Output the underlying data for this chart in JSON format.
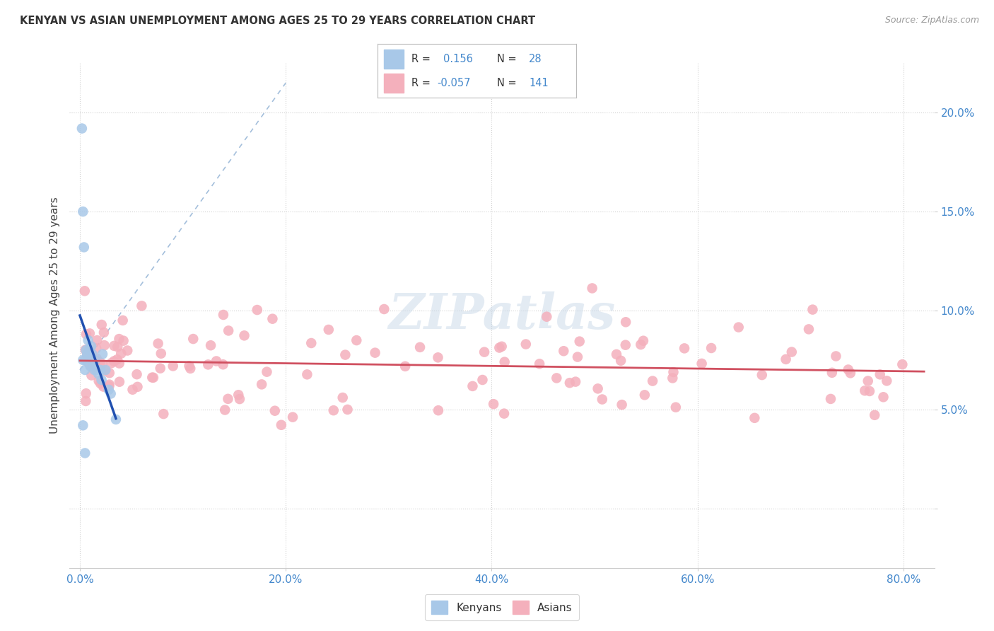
{
  "title": "KENYAN VS ASIAN UNEMPLOYMENT AMONG AGES 25 TO 29 YEARS CORRELATION CHART",
  "source": "Source: ZipAtlas.com",
  "ylabel": "Unemployment Among Ages 25 to 29 years",
  "kenyan_R": "0.156",
  "kenyan_N": "28",
  "asian_R": "-0.057",
  "asian_N": "141",
  "kenyan_color": "#a8c8e8",
  "asian_color": "#f4b0bc",
  "kenyan_trend_color": "#2050b0",
  "asian_trend_color": "#d05060",
  "ref_line_color": "#9ab8d8",
  "watermark_color": "#c8d8e8",
  "legend_text_label_color": "#333333",
  "legend_text_value_color": "#4488cc",
  "tick_color": "#4488cc",
  "title_color": "#333333",
  "source_color": "#999999",
  "ylabel_color": "#444444",
  "kenyan_x": [
    0.2,
    0.3,
    0.3,
    0.4,
    0.5,
    0.5,
    0.6,
    0.7,
    0.8,
    0.9,
    1.0,
    1.0,
    1.1,
    1.2,
    1.3,
    1.4,
    1.5,
    1.6,
    1.8,
    2.0,
    2.1,
    2.2,
    2.5,
    2.8,
    3.0,
    3.5,
    0.3,
    0.5
  ],
  "kenyan_y": [
    19.2,
    15.0,
    7.5,
    13.2,
    7.0,
    7.5,
    8.0,
    7.8,
    8.5,
    8.0,
    7.5,
    7.2,
    8.2,
    7.8,
    7.2,
    7.0,
    7.5,
    7.0,
    6.8,
    7.0,
    6.5,
    7.8,
    7.0,
    6.0,
    5.8,
    4.5,
    4.2,
    2.8
  ],
  "xlim": [
    -1.0,
    83.0
  ],
  "ylim": [
    -3.0,
    22.5
  ],
  "xticks": [
    0,
    20,
    40,
    60,
    80
  ],
  "yticks": [
    0,
    5,
    10,
    15,
    20
  ],
  "xticklabels": [
    "0.0%",
    "20.0%",
    "40.0%",
    "60.0%",
    "80.0%"
  ],
  "yticklabels": [
    "",
    "5.0%",
    "10.0%",
    "15.0%",
    "20.0%"
  ],
  "bottom_legend_labels": [
    "Kenyans",
    "Asians"
  ],
  "watermark": "ZIPatlas"
}
